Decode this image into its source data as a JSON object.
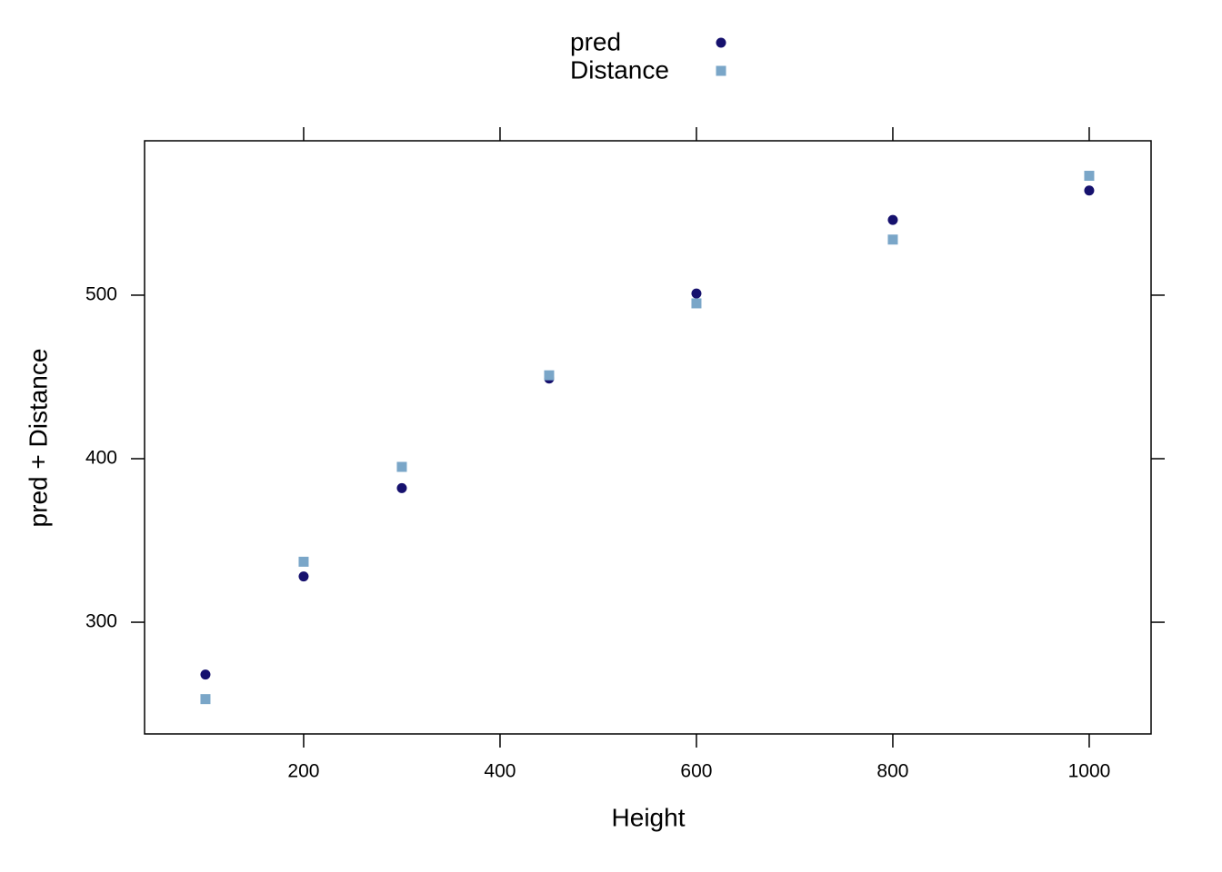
{
  "chart_data": {
    "type": "scatter",
    "x_label": "Height",
    "y_label": "pred + Distance",
    "x": [
      100,
      200,
      300,
      450,
      600,
      800,
      1000
    ],
    "series": [
      {
        "name": "pred",
        "color": "#16116e",
        "marker": "circle",
        "values": [
          268,
          328,
          382,
          449,
          501,
          546,
          564
        ]
      },
      {
        "name": "Distance",
        "color": "#7aa6c8",
        "marker": "square",
        "values": [
          253,
          337,
          395,
          451,
          495,
          534,
          573
        ]
      }
    ],
    "xlim": [
      38,
      1063
    ],
    "ylim": [
      231.7,
      594.4
    ],
    "xticks": [
      200,
      400,
      600,
      800,
      1000
    ],
    "yticks": [
      300,
      400,
      500
    ],
    "grid": false,
    "legend": "top"
  }
}
